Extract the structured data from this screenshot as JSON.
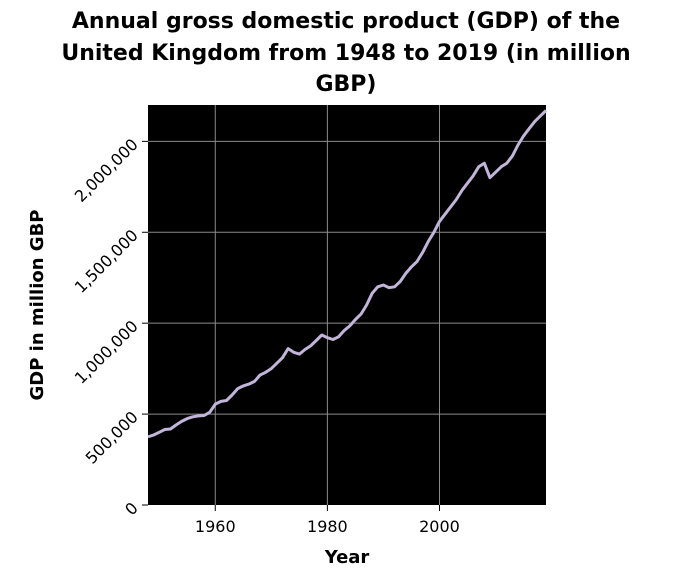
{
  "chart_data": {
    "type": "line",
    "title_lines": [
      "Annual gross domestic product (GDP) of the",
      "United Kingdom from 1948 to 2019 (in million",
      "GBP)"
    ],
    "xlabel": "Year",
    "ylabel": "GDP in million GBP",
    "xlim": [
      1948,
      2019
    ],
    "ylim": [
      0,
      2200000
    ],
    "x_ticks": [
      1960,
      1980,
      2000
    ],
    "x_tick_labels": [
      "1960",
      "1980",
      "2000"
    ],
    "y_ticks": [
      0,
      500000,
      1000000,
      1500000,
      2000000
    ],
    "y_tick_labels": [
      "0",
      "500,000",
      "1,000,000",
      "1,500,000",
      "2,000,000"
    ],
    "grid": true,
    "background": "#000000",
    "line_color": "#c2b5d9",
    "grid_color": "#8c8c8c",
    "series": [
      {
        "x": [
          1948,
          1949,
          1950,
          1951,
          1952,
          1953,
          1954,
          1955,
          1956,
          1957,
          1958,
          1959,
          1960,
          1961,
          1962,
          1963,
          1964,
          1965,
          1966,
          1967,
          1968,
          1969,
          1970,
          1971,
          1972,
          1973,
          1974,
          1975,
          1976,
          1977,
          1978,
          1979,
          1980,
          1981,
          1982,
          1983,
          1984,
          1985,
          1986,
          1987,
          1988,
          1989,
          1990,
          1991,
          1992,
          1993,
          1994,
          1995,
          1996,
          1997,
          1998,
          1999,
          2000,
          2001,
          2002,
          2003,
          2004,
          2005,
          2006,
          2007,
          2008,
          2009,
          2010,
          2011,
          2012,
          2013,
          2014,
          2015,
          2016,
          2017,
          2018,
          2019
        ],
        "values": [
          375000,
          385000,
          400000,
          415000,
          418000,
          440000,
          460000,
          475000,
          485000,
          490000,
          492000,
          510000,
          555000,
          570000,
          575000,
          605000,
          640000,
          655000,
          665000,
          680000,
          715000,
          730000,
          750000,
          780000,
          810000,
          860000,
          840000,
          830000,
          855000,
          875000,
          905000,
          935000,
          920000,
          910000,
          925000,
          960000,
          985000,
          1020000,
          1050000,
          1100000,
          1165000,
          1200000,
          1210000,
          1195000,
          1200000,
          1230000,
          1275000,
          1310000,
          1340000,
          1390000,
          1450000,
          1500000,
          1560000,
          1600000,
          1640000,
          1680000,
          1730000,
          1770000,
          1810000,
          1860000,
          1880000,
          1800000,
          1830000,
          1860000,
          1880000,
          1920000,
          1980000,
          2030000,
          2070000,
          2110000,
          2140000,
          2170000
        ]
      }
    ]
  }
}
